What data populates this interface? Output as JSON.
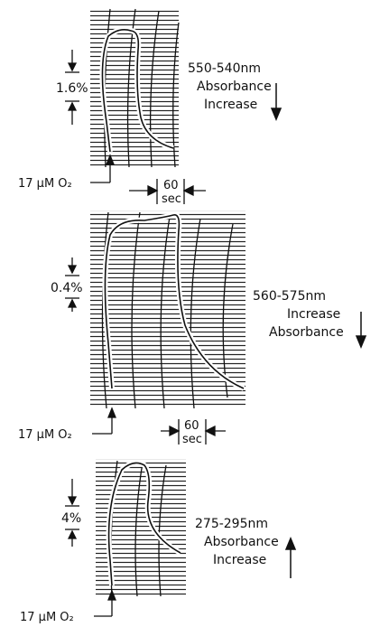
{
  "panels": [
    {
      "id": "top",
      "scale_label": "1.6%",
      "wavelength": "550-540nm",
      "line2": "Absorbance",
      "line3": "Increase",
      "arrow_direction": "down",
      "oxygen_label": "17 μM O₂",
      "time_value": "60",
      "time_unit": "sec"
    },
    {
      "id": "middle",
      "scale_label": "0.4%",
      "wavelength": "560-575nm",
      "line2": "Increase",
      "line3": "Absorbance",
      "arrow_direction": "down",
      "oxygen_label": "17 μM O₂",
      "time_value": "60",
      "time_unit": "sec"
    },
    {
      "id": "bottom",
      "scale_label": "4%",
      "wavelength": "275-295nm",
      "line2": "Absorbance",
      "line3": "Increase",
      "arrow_direction": "up",
      "oxygen_label": "17 μM O₂"
    }
  ],
  "colors": {
    "ink": "#111111",
    "paper": "#ffffff"
  }
}
